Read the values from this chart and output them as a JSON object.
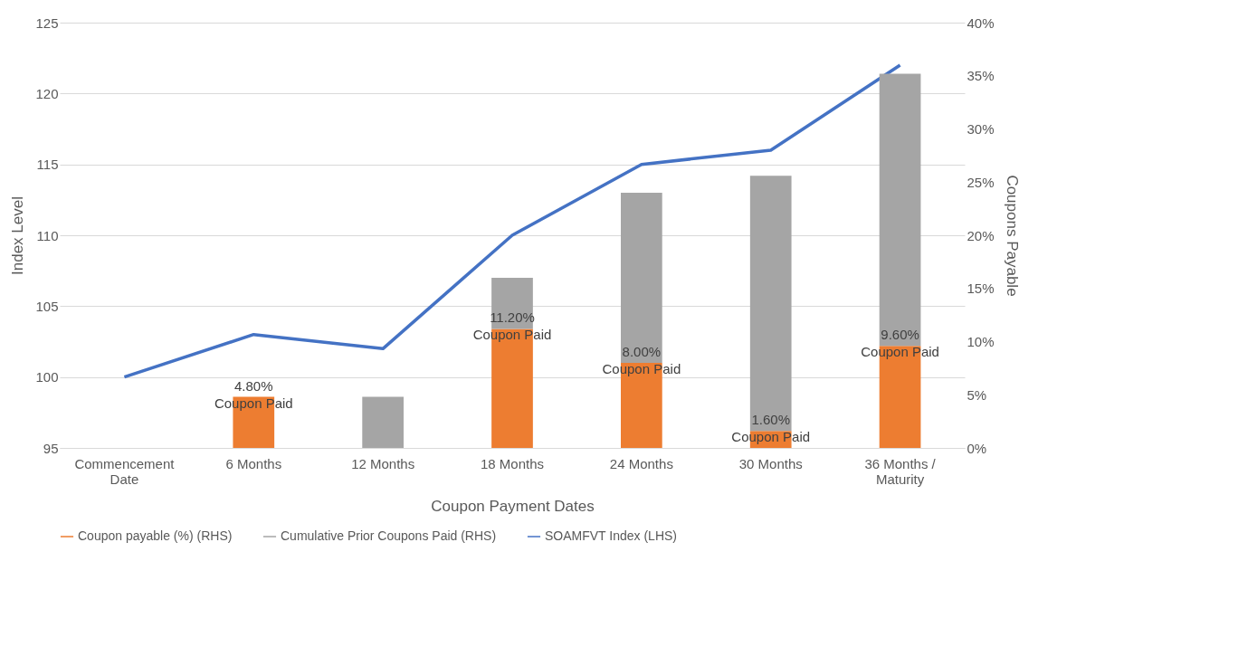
{
  "chart_data": {
    "type": "bar",
    "stacked": true,
    "xlabel": "Coupon Payment Dates",
    "ylabel": "Index Level",
    "y2label": "Coupons Payable",
    "categories": [
      "Commencement Date",
      "6 Months",
      "12 Months",
      "18 Months",
      "24 Months",
      "30 Months",
      "36 Months / Maturity"
    ],
    "series": [
      {
        "name": "Coupon payable (%) (RHS)",
        "type": "bar",
        "axis": "y2",
        "color": "#ed7d31",
        "values": [
          null,
          4.8,
          null,
          11.2,
          8.0,
          1.6,
          9.6
        ],
        "value_labels": [
          null,
          "4.80% Coupon Paid",
          null,
          "11.20% Coupon Paid",
          "8.00% Coupon Paid",
          "1.60% Coupon Paid",
          "9.60% Coupon Paid"
        ]
      },
      {
        "name": "Cumulative Prior Coupons Paid (RHS)",
        "type": "bar",
        "axis": "y2",
        "color": "#a5a5a5",
        "values": [
          null,
          null,
          4.8,
          4.8,
          16,
          24,
          25.6
        ]
      },
      {
        "name": "SOAMFVT Index (LHS)",
        "type": "line",
        "color": "#4472c4",
        "values": [
          100,
          103,
          102,
          110,
          115,
          116,
          122
        ]
      }
    ],
    "ylim": [
      95,
      125
    ],
    "yticks": [
      95,
      100,
      105,
      110,
      115,
      120,
      125
    ],
    "y2lim": [
      0,
      40
    ],
    "y2ticks": [
      {
        "value": 0,
        "label": "0%"
      },
      {
        "value": 5,
        "label": "5%"
      },
      {
        "value": 10,
        "label": "10%"
      },
      {
        "value": 15,
        "label": "15%"
      },
      {
        "value": 20,
        "label": "20%"
      },
      {
        "value": 25,
        "label": "25%"
      },
      {
        "value": 30,
        "label": "30%"
      },
      {
        "value": 35,
        "label": "35%"
      },
      {
        "value": 40,
        "label": "40%"
      }
    ],
    "grid": "y",
    "legend": "bottom",
    "marker": "none",
    "line_style": "solid"
  }
}
